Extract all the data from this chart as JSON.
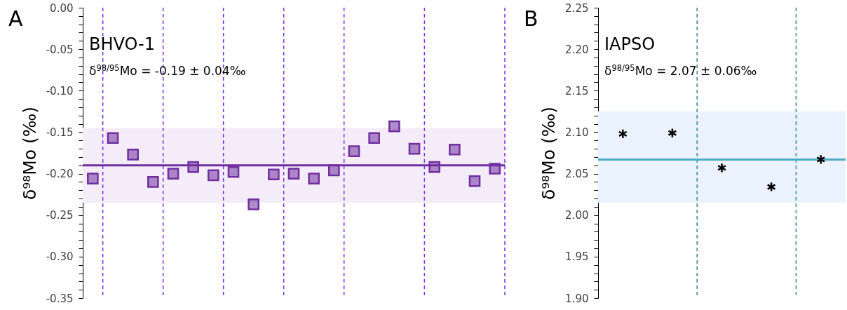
{
  "chart_data": [
    {
      "type": "scatter",
      "title": "BHVO-1",
      "subtitle": "δ$^{98/95}$Mo = -0.19 ± 0.04‰",
      "ylabel": "δ⁹⁸Mo (‰)",
      "annotations": [
        "A"
      ],
      "marker": "square",
      "tick_labels": "y",
      "categories": [
        null,
        null,
        null,
        null,
        null,
        null,
        null,
        null,
        null,
        null,
        null,
        null,
        null,
        null,
        null,
        null,
        null,
        null,
        null,
        null,
        null
      ],
      "ylim": [
        -0.35,
        0
      ],
      "yticks": [
        {
          "value": 0,
          "label": "0.00"
        },
        {
          "value": -0.05,
          "label": "-0.05"
        },
        {
          "value": -0.1,
          "label": "-0.10"
        },
        {
          "value": -0.15,
          "label": "-0.15"
        },
        {
          "value": -0.2,
          "label": "-0.20"
        },
        {
          "value": -0.25,
          "label": "-0.25"
        },
        {
          "value": -0.3,
          "label": "-0.30"
        },
        {
          "value": -0.35,
          "label": "-0.35"
        },
        {
          "value": -0.01,
          "label": null
        },
        {
          "value": -0.02,
          "label": null
        },
        {
          "value": -0.03,
          "label": null
        },
        {
          "value": -0.04,
          "label": null
        },
        {
          "value": -0.06,
          "label": null
        },
        {
          "value": -0.07,
          "label": null
        },
        {
          "value": -0.08,
          "label": null
        },
        {
          "value": -0.09,
          "label": null
        },
        {
          "value": -0.11,
          "label": null
        },
        {
          "value": -0.12,
          "label": null
        },
        {
          "value": -0.13,
          "label": null
        },
        {
          "value": -0.14,
          "label": null
        },
        {
          "value": -0.16,
          "label": null
        },
        {
          "value": -0.17,
          "label": null
        },
        {
          "value": -0.18,
          "label": null
        },
        {
          "value": -0.19,
          "label": null
        },
        {
          "value": -0.21,
          "label": null
        },
        {
          "value": -0.22,
          "label": null
        },
        {
          "value": -0.23,
          "label": null
        },
        {
          "value": -0.24,
          "label": null
        },
        {
          "value": -0.26,
          "label": null
        },
        {
          "value": -0.27,
          "label": null
        },
        {
          "value": -0.28,
          "label": null
        },
        {
          "value": -0.29,
          "label": null
        },
        {
          "value": -0.31,
          "label": null
        },
        {
          "value": -0.32,
          "label": null
        },
        {
          "value": -0.33,
          "label": null
        },
        {
          "value": -0.34,
          "label": null
        }
      ],
      "series": [
        {
          "color": "#7030a0",
          "values": [
            -0.206,
            -0.157,
            -0.177,
            -0.21,
            -0.2,
            -0.192,
            -0.202,
            -0.198,
            -0.237,
            -0.201,
            -0.2,
            -0.206,
            -0.196,
            -0.173,
            -0.157,
            -0.143,
            -0.17,
            -0.192,
            -0.171,
            -0.209,
            -0.194
          ]
        }
      ],
      "bands": [
        {
          "axis": "y",
          "from": -0.235,
          "to": -0.145,
          "color": "#f5ecf9"
        }
      ],
      "ref_lines": [
        {
          "axis": "y",
          "value": -0.19,
          "color": "#7030a0",
          "line_style": "solid"
        }
      ]
    },
    {
      "type": "scatter",
      "title": "IAPSO",
      "subtitle": "δ$^{98/95}$Mo = 2.07 ± 0.06‰",
      "ylabel": "δ⁹⁸Mo (‰)",
      "annotations": [
        "B"
      ],
      "marker": "cross",
      "tick_labels": "y",
      "categories": [
        null,
        null,
        null,
        null,
        null
      ],
      "ylim": [
        1.9,
        2.25
      ],
      "yticks": [
        {
          "value": 1.9,
          "label": "1.90"
        },
        {
          "value": 1.95,
          "label": "1.95"
        },
        {
          "value": 2,
          "label": "2.00"
        },
        {
          "value": 2.05,
          "label": "2.05"
        },
        {
          "value": 2.1,
          "label": "2.10"
        },
        {
          "value": 2.15,
          "label": "2.15"
        },
        {
          "value": 2.2,
          "label": "2.20"
        },
        {
          "value": 2.25,
          "label": "2.25"
        },
        {
          "value": 1.91,
          "label": null
        },
        {
          "value": 1.92,
          "label": null
        },
        {
          "value": 1.93,
          "label": null
        },
        {
          "value": 1.94,
          "label": null
        },
        {
          "value": 1.96,
          "label": null
        },
        {
          "value": 1.97,
          "label": null
        },
        {
          "value": 1.98,
          "label": null
        },
        {
          "value": 1.99,
          "label": null
        },
        {
          "value": 2.01,
          "label": null
        },
        {
          "value": 2.02,
          "label": null
        },
        {
          "value": 2.03,
          "label": null
        },
        {
          "value": 2.04,
          "label": null
        },
        {
          "value": 2.06,
          "label": null
        },
        {
          "value": 2.07,
          "label": null
        },
        {
          "value": 2.08,
          "label": null
        },
        {
          "value": 2.09,
          "label": null
        },
        {
          "value": 2.11,
          "label": null
        },
        {
          "value": 2.12,
          "label": null
        },
        {
          "value": 2.13,
          "label": null
        },
        {
          "value": 2.14,
          "label": null
        },
        {
          "value": 2.16,
          "label": null
        },
        {
          "value": 2.17,
          "label": null
        },
        {
          "value": 2.18,
          "label": null
        },
        {
          "value": 2.19,
          "label": null
        },
        {
          "value": 2.21,
          "label": null
        },
        {
          "value": 2.22,
          "label": null
        },
        {
          "value": 2.23,
          "label": null
        },
        {
          "value": 2.24,
          "label": null
        }
      ],
      "series": [
        {
          "color": "#000000",
          "values": [
            2.098,
            2.099,
            2.057,
            2.034,
            2.067
          ]
        }
      ],
      "bands": [
        {
          "axis": "y",
          "from": 2.015,
          "to": 2.125,
          "color": "#eaf2fd"
        }
      ],
      "ref_lines": [
        {
          "axis": "y",
          "value": 2.067,
          "color": "#4bacc6",
          "line_style": "solid"
        }
      ]
    }
  ]
}
